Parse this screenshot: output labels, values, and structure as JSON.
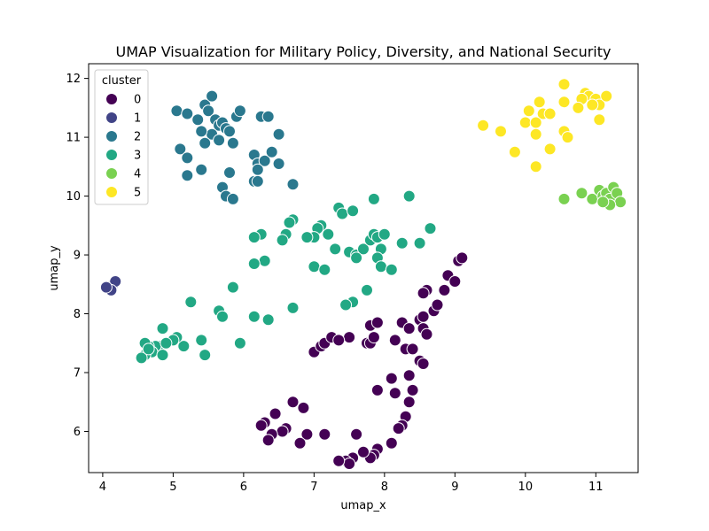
{
  "chart_data": {
    "type": "scatter",
    "title": "UMAP Visualization for Military Policy, Diversity, and National Security",
    "xlabel": "umap_x",
    "ylabel": "umap_y",
    "xlim": [
      3.8,
      11.6
    ],
    "ylim": [
      5.3,
      12.25
    ],
    "xticks": [
      4,
      5,
      6,
      7,
      8,
      9,
      10,
      11
    ],
    "yticks": [
      6,
      7,
      8,
      9,
      10,
      11,
      12
    ],
    "grid": false,
    "legend": {
      "title": "cluster",
      "placement": "top-left"
    },
    "series": [
      {
        "name": "0",
        "color": "#440154",
        "points": [
          [
            7.5,
            7.6
          ],
          [
            7.8,
            7.8
          ],
          [
            7.9,
            7.85
          ],
          [
            8.25,
            7.85
          ],
          [
            8.35,
            7.75
          ],
          [
            8.5,
            7.9
          ],
          [
            8.55,
            7.75
          ],
          [
            8.6,
            7.65
          ],
          [
            8.7,
            8.05
          ],
          [
            8.75,
            8.15
          ],
          [
            8.85,
            8.4
          ],
          [
            8.9,
            8.65
          ],
          [
            9.0,
            8.55
          ],
          [
            9.05,
            8.9
          ],
          [
            9.1,
            8.95
          ],
          [
            8.6,
            8.4
          ],
          [
            8.55,
            8.35
          ],
          [
            8.55,
            7.95
          ],
          [
            7.0,
            7.35
          ],
          [
            7.1,
            7.45
          ],
          [
            7.15,
            7.5
          ],
          [
            7.25,
            7.6
          ],
          [
            7.35,
            7.55
          ],
          [
            7.75,
            7.5
          ],
          [
            7.8,
            7.5
          ],
          [
            7.85,
            7.6
          ],
          [
            8.15,
            7.55
          ],
          [
            8.3,
            7.4
          ],
          [
            8.4,
            7.4
          ],
          [
            8.5,
            7.2
          ],
          [
            8.55,
            7.15
          ],
          [
            8.1,
            6.9
          ],
          [
            8.35,
            6.95
          ],
          [
            8.4,
            6.7
          ],
          [
            8.15,
            6.65
          ],
          [
            7.9,
            6.7
          ],
          [
            8.35,
            6.5
          ],
          [
            8.3,
            6.25
          ],
          [
            8.25,
            6.1
          ],
          [
            8.2,
            6.05
          ],
          [
            8.1,
            5.8
          ],
          [
            7.9,
            5.7
          ],
          [
            7.85,
            5.6
          ],
          [
            7.8,
            5.55
          ],
          [
            7.7,
            5.65
          ],
          [
            7.6,
            5.95
          ],
          [
            7.55,
            5.55
          ],
          [
            7.45,
            5.5
          ],
          [
            7.5,
            5.45
          ],
          [
            7.35,
            5.5
          ],
          [
            7.15,
            5.95
          ],
          [
            6.9,
            5.95
          ],
          [
            6.8,
            5.8
          ],
          [
            6.85,
            6.4
          ],
          [
            6.7,
            6.5
          ],
          [
            6.6,
            6.05
          ],
          [
            6.55,
            6.0
          ],
          [
            6.45,
            6.3
          ],
          [
            6.4,
            5.95
          ],
          [
            6.35,
            5.85
          ],
          [
            6.3,
            6.15
          ],
          [
            6.25,
            6.1
          ]
        ]
      },
      {
        "name": "1",
        "color": "#414487",
        "points": [
          [
            4.1,
            8.45
          ],
          [
            4.15,
            8.5
          ],
          [
            4.18,
            8.55
          ],
          [
            4.12,
            8.4
          ],
          [
            4.05,
            8.45
          ]
        ]
      },
      {
        "name": "2",
        "color": "#2a788e",
        "points": [
          [
            5.05,
            11.45
          ],
          [
            5.2,
            11.4
          ],
          [
            5.35,
            11.3
          ],
          [
            5.45,
            11.55
          ],
          [
            5.5,
            11.45
          ],
          [
            5.55,
            11.7
          ],
          [
            5.6,
            11.3
          ],
          [
            5.65,
            11.2
          ],
          [
            5.7,
            11.25
          ],
          [
            5.75,
            11.15
          ],
          [
            5.8,
            11.1
          ],
          [
            5.9,
            11.35
          ],
          [
            5.95,
            11.45
          ],
          [
            5.55,
            11.05
          ],
          [
            5.45,
            10.9
          ],
          [
            5.4,
            11.1
          ],
          [
            5.65,
            10.95
          ],
          [
            5.85,
            10.9
          ],
          [
            5.1,
            10.8
          ],
          [
            5.2,
            10.65
          ],
          [
            5.4,
            10.45
          ],
          [
            5.2,
            10.35
          ],
          [
            5.8,
            10.4
          ],
          [
            5.7,
            10.15
          ],
          [
            5.75,
            10.0
          ],
          [
            5.85,
            9.95
          ],
          [
            6.25,
            11.35
          ],
          [
            6.35,
            11.35
          ],
          [
            6.5,
            11.05
          ],
          [
            6.15,
            10.7
          ],
          [
            6.2,
            10.55
          ],
          [
            6.3,
            10.6
          ],
          [
            6.4,
            10.75
          ],
          [
            6.5,
            10.55
          ],
          [
            6.2,
            10.45
          ],
          [
            6.15,
            10.25
          ],
          [
            6.2,
            10.25
          ],
          [
            6.7,
            10.2
          ]
        ]
      },
      {
        "name": "3",
        "color": "#22a884",
        "points": [
          [
            7.35,
            9.8
          ],
          [
            7.4,
            9.7
          ],
          [
            7.55,
            9.75
          ],
          [
            7.85,
            9.95
          ],
          [
            8.35,
            10.0
          ],
          [
            6.7,
            9.6
          ],
          [
            6.65,
            9.55
          ],
          [
            7.1,
            9.5
          ],
          [
            7.05,
            9.45
          ],
          [
            7.2,
            9.35
          ],
          [
            7.0,
            9.3
          ],
          [
            6.9,
            9.3
          ],
          [
            6.6,
            9.35
          ],
          [
            6.55,
            9.25
          ],
          [
            6.25,
            9.35
          ],
          [
            6.15,
            9.3
          ],
          [
            7.3,
            9.1
          ],
          [
            7.5,
            9.05
          ],
          [
            7.6,
            9.0
          ],
          [
            7.7,
            9.1
          ],
          [
            7.8,
            9.25
          ],
          [
            7.85,
            9.35
          ],
          [
            7.9,
            9.3
          ],
          [
            7.95,
            9.1
          ],
          [
            8.0,
            9.35
          ],
          [
            8.25,
            9.2
          ],
          [
            8.5,
            9.2
          ],
          [
            8.65,
            9.45
          ],
          [
            7.6,
            8.95
          ],
          [
            7.9,
            8.95
          ],
          [
            7.95,
            8.8
          ],
          [
            8.1,
            8.75
          ],
          [
            7.0,
            8.8
          ],
          [
            7.15,
            8.75
          ],
          [
            6.3,
            8.9
          ],
          [
            6.15,
            8.85
          ],
          [
            5.85,
            8.45
          ],
          [
            7.75,
            8.4
          ],
          [
            7.55,
            8.2
          ],
          [
            7.45,
            8.15
          ],
          [
            6.7,
            8.1
          ],
          [
            5.25,
            8.2
          ],
          [
            5.65,
            8.05
          ],
          [
            5.7,
            7.95
          ],
          [
            6.15,
            7.95
          ],
          [
            6.35,
            7.9
          ],
          [
            5.95,
            7.5
          ],
          [
            5.4,
            7.55
          ],
          [
            5.15,
            7.45
          ],
          [
            5.45,
            7.3
          ],
          [
            5.05,
            7.6
          ],
          [
            5.0,
            7.55
          ],
          [
            4.85,
            7.75
          ],
          [
            4.8,
            7.45
          ],
          [
            4.75,
            7.45
          ],
          [
            4.7,
            7.35
          ],
          [
            4.65,
            7.45
          ],
          [
            4.6,
            7.3
          ],
          [
            4.55,
            7.25
          ],
          [
            4.6,
            7.5
          ],
          [
            4.85,
            7.3
          ],
          [
            4.9,
            7.5
          ],
          [
            4.65,
            7.4
          ]
        ]
      },
      {
        "name": "4",
        "color": "#7ad151",
        "points": [
          [
            10.55,
            9.95
          ],
          [
            10.8,
            10.05
          ],
          [
            10.95,
            9.95
          ],
          [
            11.05,
            10.1
          ],
          [
            11.1,
            10.0
          ],
          [
            11.15,
            10.05
          ],
          [
            11.2,
            9.95
          ],
          [
            11.25,
            10.15
          ],
          [
            11.3,
            10.05
          ],
          [
            11.35,
            9.9
          ],
          [
            11.2,
            9.85
          ],
          [
            11.1,
            9.9
          ]
        ]
      },
      {
        "name": "5",
        "color": "#fde725",
        "points": [
          [
            10.55,
            11.9
          ],
          [
            10.85,
            11.75
          ],
          [
            10.9,
            11.7
          ],
          [
            11.0,
            11.65
          ],
          [
            11.05,
            11.55
          ],
          [
            11.15,
            11.7
          ],
          [
            10.8,
            11.65
          ],
          [
            10.95,
            11.55
          ],
          [
            10.75,
            11.5
          ],
          [
            10.2,
            11.6
          ],
          [
            10.05,
            11.45
          ],
          [
            10.25,
            11.4
          ],
          [
            10.35,
            11.4
          ],
          [
            10.55,
            11.6
          ],
          [
            11.05,
            11.3
          ],
          [
            9.4,
            11.2
          ],
          [
            9.65,
            11.1
          ],
          [
            10.0,
            11.25
          ],
          [
            10.15,
            11.25
          ],
          [
            10.55,
            11.1
          ],
          [
            10.6,
            11.0
          ],
          [
            10.15,
            11.05
          ],
          [
            9.85,
            10.75
          ],
          [
            10.35,
            10.8
          ],
          [
            10.15,
            10.5
          ]
        ]
      }
    ]
  }
}
